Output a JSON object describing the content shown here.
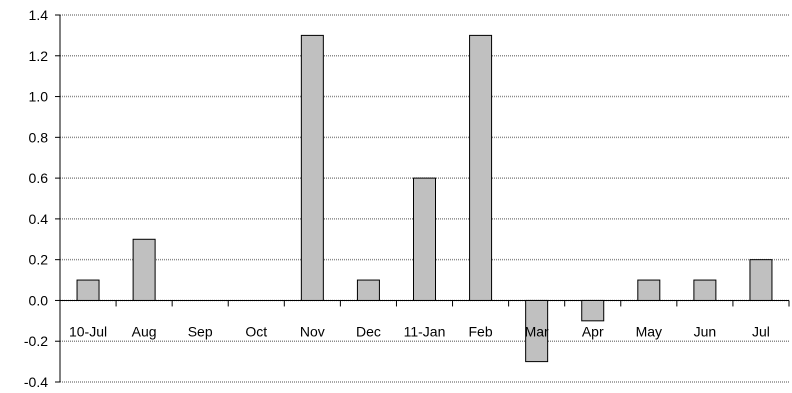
{
  "chart_data": {
    "type": "bar",
    "title": "",
    "xlabel": "",
    "ylabel": "",
    "categories": [
      "10-Jul",
      "Aug",
      "Sep",
      "Oct",
      "Nov",
      "Dec",
      "11-Jan",
      "Feb",
      "Mar",
      "Apr",
      "May",
      "Jun",
      "Jul"
    ],
    "values": [
      0.1,
      0.3,
      0.0,
      0.0,
      1.3,
      0.1,
      0.6,
      1.3,
      -0.3,
      -0.1,
      0.1,
      0.1,
      0.2
    ],
    "ylim": [
      -0.4,
      1.4
    ],
    "yticks": [
      "1.4",
      "1.2",
      "1.0",
      "0.8",
      "0.6",
      "0.4",
      "0.2",
      "0.0",
      "-0.2",
      "-0.4"
    ],
    "grid": true,
    "legend": "none",
    "bar_color": "#c0c0c0",
    "bar_edge_color": "#000000"
  }
}
